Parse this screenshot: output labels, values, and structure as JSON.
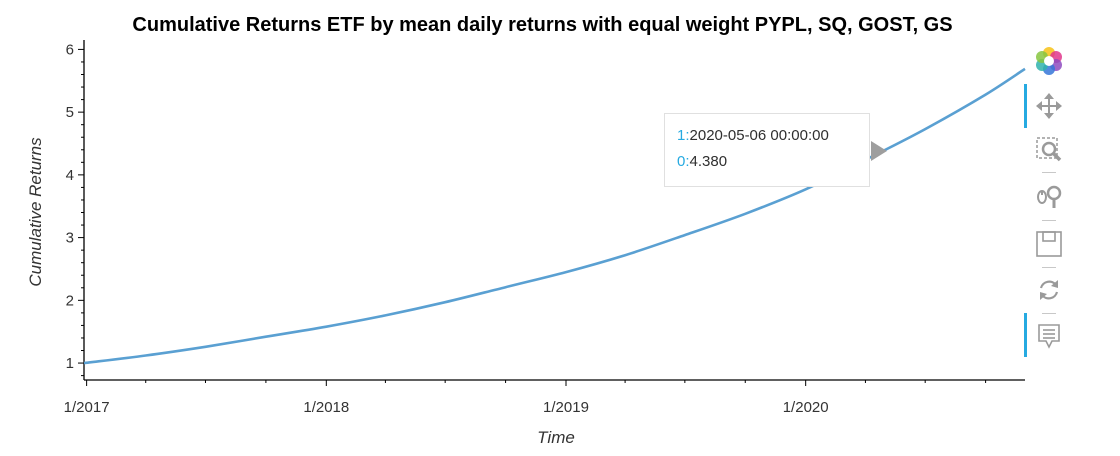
{
  "chart_data": {
    "type": "line",
    "title": "Cumulative Returns ETF by mean daily returns with equal weight PYPL, SQ, GOST, GS",
    "xlabel": "Time",
    "ylabel": "Cumulative Returns",
    "xlim": [
      "2016-12-28",
      "2020-11-30"
    ],
    "ylim": [
      0.73,
      6.15
    ],
    "x_ticks": [
      "2017-01-01",
      "2018-01-01",
      "2019-01-01",
      "2020-01-01"
    ],
    "x_tick_labels": [
      "1/2017",
      "1/2018",
      "1/2019",
      "1/2020"
    ],
    "y_ticks": [
      1,
      2,
      3,
      4,
      5,
      6
    ],
    "y_tick_labels": [
      "1",
      "2",
      "3",
      "4",
      "5",
      "6"
    ],
    "grid": false,
    "series": [
      {
        "color": "#5aa0d2",
        "x": [
          "2016-12-28",
          "2017-04-01",
          "2017-07-01",
          "2017-10-01",
          "2018-01-01",
          "2018-04-01",
          "2018-07-01",
          "2018-10-01",
          "2019-01-01",
          "2019-04-01",
          "2019-07-01",
          "2019-10-01",
          "2020-01-01",
          "2020-04-01",
          "2020-07-01",
          "2020-10-01",
          "2020-11-30"
        ],
        "y": [
          1.0,
          1.12,
          1.26,
          1.42,
          1.58,
          1.76,
          1.97,
          2.21,
          2.45,
          2.72,
          3.04,
          3.38,
          3.77,
          4.24,
          4.73,
          5.28,
          5.69
        ]
      }
    ]
  },
  "tooltip": {
    "key1": "1:",
    "value1": "2020-05-06 00:00:00",
    "key0": "0:",
    "value0": "4.380"
  },
  "toolbar": {
    "tools": [
      "bokeh-logo-icon",
      "pan-icon",
      "box-zoom-icon",
      "wheel-zoom-icon",
      "save-icon",
      "reset-icon",
      "hover-icon"
    ],
    "accent_color": "#26aae1"
  }
}
